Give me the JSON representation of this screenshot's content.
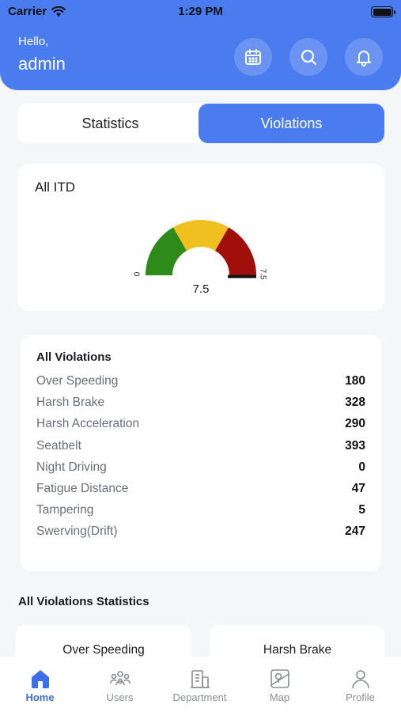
{
  "status_bar": {
    "carrier": "Carrier",
    "time": "1:29 PM"
  },
  "header": {
    "greeting": "Hello,",
    "username": "admin",
    "icons": [
      "calendar-icon",
      "search-icon",
      "bell-icon"
    ]
  },
  "tabs": {
    "statistics": "Statistics",
    "violations": "Violations",
    "active": "Violations"
  },
  "itd": {
    "title": "All ITD",
    "value": "7.5",
    "min_label": "0",
    "max_label": "7.5",
    "fill": 1.0,
    "colors": [
      "#2e8b1a",
      "#f0c020",
      "#a00f0a"
    ]
  },
  "violations": {
    "title": "All Violations",
    "items": [
      {
        "label": "Over Speeding",
        "value": "180"
      },
      {
        "label": "Harsh Brake",
        "value": "328"
      },
      {
        "label": "Harsh Acceleration",
        "value": "290"
      },
      {
        "label": "Seatbelt",
        "value": "393"
      },
      {
        "label": "Night Driving",
        "value": "0"
      },
      {
        "label": "Fatigue Distance",
        "value": "47"
      },
      {
        "label": "Tampering",
        "value": "5"
      },
      {
        "label": "Swerving(Drift)",
        "value": "247"
      }
    ]
  },
  "statistics": {
    "title": "All Violations Statistics",
    "cards": [
      "Over Speeding",
      "Harsh Brake"
    ]
  },
  "nav": {
    "items": [
      {
        "label": "Home",
        "icon": "home-icon",
        "active": true
      },
      {
        "label": "Users",
        "icon": "users-icon",
        "active": false
      },
      {
        "label": "Department",
        "icon": "department-icon",
        "active": false
      },
      {
        "label": "Map",
        "icon": "map-icon",
        "active": false
      },
      {
        "label": "Profile",
        "icon": "profile-icon",
        "active": false
      }
    ]
  },
  "colors": {
    "primary": "#4a7cf0",
    "active_nav": "#3b6ee8"
  }
}
